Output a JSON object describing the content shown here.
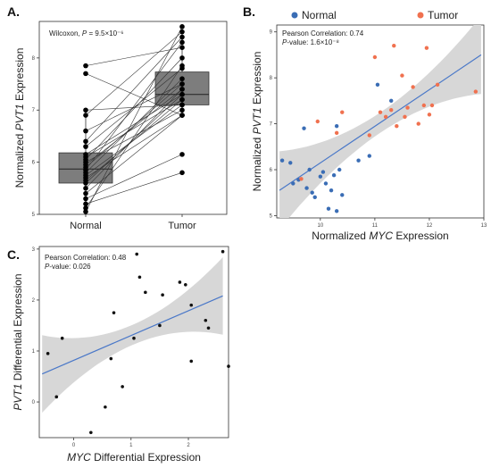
{
  "colors": {
    "box_fill": "#7d7d7d",
    "normal": "#3a6db5",
    "tumor": "#f0714f",
    "trend_line": "#4a78c8",
    "ci_band": "#d7d7d7"
  },
  "chart_data": [
    {
      "panel": "A.",
      "type": "box",
      "annotation_prefix": "Wilcoxon, ",
      "annotation_p": "P",
      "annotation_value": " = 9.5×10⁻⁶",
      "ylabel_pre": "Normalized ",
      "ylabel_gene": "PVT1",
      "ylabel_post": " Expression",
      "categories": [
        "Normal",
        "Tumor"
      ],
      "ylim": [
        5,
        8.7
      ],
      "yticks": [
        5,
        6,
        7,
        8
      ],
      "boxes": [
        {
          "name": "Normal",
          "q1": 5.6,
          "median": 5.87,
          "q3": 6.18,
          "whisker_low": 5.08,
          "whisker_high": 7.0
        },
        {
          "name": "Tumor",
          "q1": 7.1,
          "median": 7.3,
          "q3": 7.73,
          "whisker_low": 6.9,
          "whisker_high": 8.63
        }
      ],
      "pairs": [
        [
          5.05,
          8.6
        ],
        [
          5.12,
          7.85
        ],
        [
          5.2,
          5.8
        ],
        [
          5.3,
          6.15
        ],
        [
          5.4,
          6.9
        ],
        [
          5.5,
          7.4
        ],
        [
          5.6,
          7.3
        ],
        [
          5.65,
          7.2
        ],
        [
          5.7,
          6.9
        ],
        [
          5.75,
          7.1
        ],
        [
          5.8,
          7.6
        ],
        [
          5.85,
          8.3
        ],
        [
          5.9,
          7.5
        ],
        [
          5.95,
          7.4
        ],
        [
          6.0,
          7.0
        ],
        [
          6.05,
          8.0
        ],
        [
          6.1,
          7.2
        ],
        [
          6.15,
          7.3
        ],
        [
          6.3,
          7.8
        ],
        [
          6.4,
          8.4
        ],
        [
          6.6,
          7.5
        ],
        [
          6.9,
          8.5
        ],
        [
          7.0,
          7.1
        ],
        [
          7.7,
          6.9
        ],
        [
          7.85,
          8.2
        ]
      ]
    },
    {
      "panel": "B.",
      "type": "scatter",
      "legend": [
        "Normal",
        "Tumor"
      ],
      "stat_line1": "Pearson Correlation: 0.74",
      "stat_p": "P",
      "stat_line2": "-value: 1.6×10⁻⁸",
      "xlabel_pre": "Normalized ",
      "xlabel_gene": "MYC",
      "xlabel_post": " Expression",
      "ylabel_pre": "Normalized ",
      "ylabel_gene": "PVT1",
      "ylabel_post": " Expression",
      "xlim": [
        9.2,
        13
      ],
      "ylim": [
        4.95,
        9.15
      ],
      "xticks": [
        10,
        11,
        12,
        13
      ],
      "yticks": [
        5,
        6,
        7,
        8,
        9
      ],
      "fit": {
        "x": [
          9.25,
          12.95
        ],
        "y": [
          5.55,
          8.5
        ]
      },
      "series": [
        {
          "name": "Normal",
          "points": [
            [
              9.3,
              6.2
            ],
            [
              9.45,
              6.15
            ],
            [
              9.5,
              5.7
            ],
            [
              9.6,
              5.78
            ],
            [
              9.7,
              6.9
            ],
            [
              9.75,
              5.6
            ],
            [
              9.8,
              6.0
            ],
            [
              9.85,
              5.5
            ],
            [
              9.9,
              5.4
            ],
            [
              10.0,
              5.85
            ],
            [
              10.05,
              5.95
            ],
            [
              10.1,
              5.7
            ],
            [
              10.15,
              5.15
            ],
            [
              10.2,
              5.55
            ],
            [
              10.25,
              5.88
            ],
            [
              10.3,
              5.1
            ],
            [
              10.3,
              6.95
            ],
            [
              10.35,
              6.0
            ],
            [
              10.4,
              5.45
            ],
            [
              10.7,
              6.2
            ],
            [
              10.9,
              6.3
            ],
            [
              11.05,
              7.85
            ],
            [
              11.3,
              7.5
            ]
          ]
        },
        {
          "name": "Tumor",
          "points": [
            [
              9.65,
              5.8
            ],
            [
              9.95,
              7.05
            ],
            [
              10.3,
              6.8
            ],
            [
              10.4,
              7.25
            ],
            [
              10.9,
              6.75
            ],
            [
              11.0,
              8.45
            ],
            [
              11.1,
              7.25
            ],
            [
              11.2,
              7.15
            ],
            [
              11.3,
              7.3
            ],
            [
              11.35,
              8.7
            ],
            [
              11.4,
              6.95
            ],
            [
              11.5,
              8.05
            ],
            [
              11.55,
              7.15
            ],
            [
              11.6,
              7.35
            ],
            [
              11.7,
              7.8
            ],
            [
              11.8,
              7.0
            ],
            [
              11.9,
              7.4
            ],
            [
              11.95,
              8.65
            ],
            [
              12.0,
              7.2
            ],
            [
              12.05,
              7.4
            ],
            [
              12.15,
              7.85
            ],
            [
              12.85,
              7.7
            ]
          ]
        }
      ]
    },
    {
      "panel": "C.",
      "type": "scatter",
      "stat_line1": "Pearson Correlation: 0.48",
      "stat_p": "P",
      "stat_line2": "-value: 0.026",
      "xlabel_gene": "MYC",
      "xlabel_post": " Differential Expression",
      "ylabel_gene": "PVT1",
      "ylabel_post": " Differential Expression",
      "xlim": [
        -0.6,
        2.7
      ],
      "ylim": [
        -0.7,
        3.05
      ],
      "xticks": [
        0,
        1,
        2
      ],
      "yticks": [
        0,
        1,
        2,
        3
      ],
      "fit": {
        "x": [
          -0.55,
          2.6
        ],
        "y": [
          0.55,
          2.08
        ]
      },
      "series": [
        {
          "name": "",
          "points": [
            [
              -0.45,
              0.95
            ],
            [
              -0.3,
              0.1
            ],
            [
              -0.2,
              1.25
            ],
            [
              0.3,
              -0.6
            ],
            [
              0.55,
              -0.1
            ],
            [
              0.65,
              0.85
            ],
            [
              0.7,
              1.75
            ],
            [
              0.85,
              0.3
            ],
            [
              1.05,
              1.25
            ],
            [
              1.1,
              2.9
            ],
            [
              1.15,
              2.45
            ],
            [
              1.25,
              2.15
            ],
            [
              1.5,
              1.5
            ],
            [
              1.55,
              2.1
            ],
            [
              1.85,
              2.35
            ],
            [
              1.95,
              2.3
            ],
            [
              2.05,
              1.9
            ],
            [
              2.05,
              0.8
            ],
            [
              2.3,
              1.6
            ],
            [
              2.35,
              1.45
            ],
            [
              2.6,
              2.95
            ],
            [
              2.7,
              0.7
            ]
          ]
        }
      ]
    }
  ]
}
